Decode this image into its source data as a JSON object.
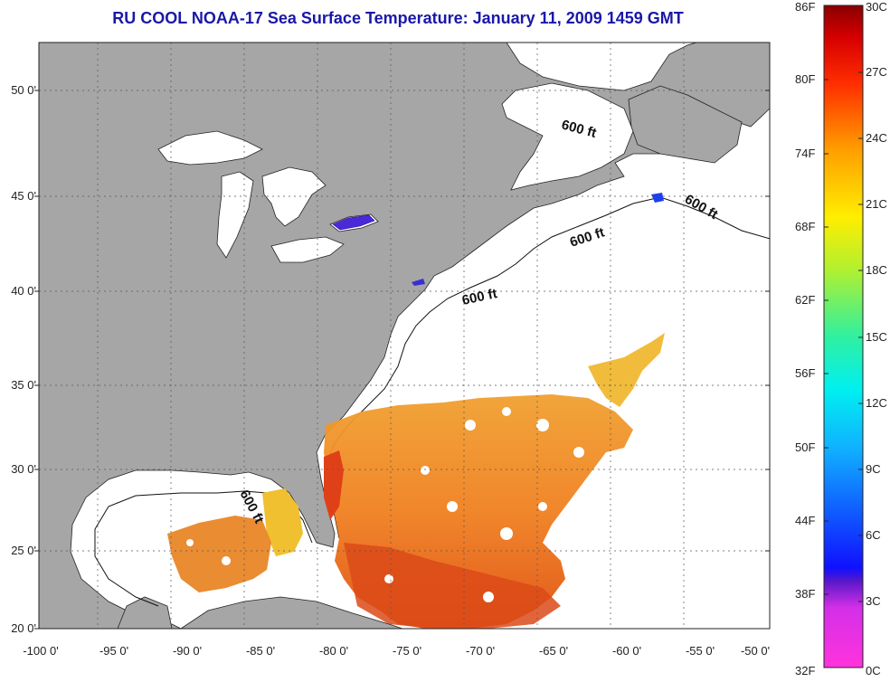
{
  "title": "RU COOL  NOAA-17  Sea Surface Temperature:  January 11, 2009 1459 GMT",
  "axes": {
    "lat_labels": [
      "50 0'",
      "45 0'",
      "40 0'",
      "35 0'",
      "30 0'",
      "25 0'",
      "20 0'"
    ],
    "lon_labels": [
      "-100 0'",
      "-95 0'",
      "-90 0'",
      "-85 0'",
      "-80 0'",
      "-75 0'",
      "-70 0'",
      "-65 0'",
      "-60 0'",
      "-55 0'",
      "-50 0'"
    ]
  },
  "isobath_labels": [
    "600 ft",
    "600 ft",
    "600 ft",
    "600 ft",
    "600 ft"
  ],
  "colorbar": {
    "fahrenheit": [
      "86F",
      "80F",
      "74F",
      "68F",
      "62F",
      "56F",
      "50F",
      "44F",
      "38F",
      "32F"
    ],
    "celsius": [
      "30C",
      "27C",
      "24C",
      "21C",
      "18C",
      "15C",
      "12C",
      "9C",
      "6C",
      "3C",
      "0C"
    ]
  },
  "colors": {
    "land": "#a6a6a6",
    "title": "#1a18a8",
    "no_data": "#ffffff"
  }
}
